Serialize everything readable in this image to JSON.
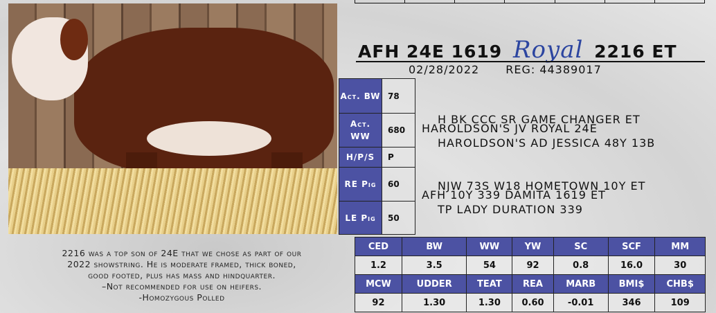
{
  "header": {
    "prefix": "AFH 24E 1619",
    "script_name": "Royal",
    "suffix": "2216 ET",
    "date": "02/28/2022",
    "reg": "REG: 44389017"
  },
  "colors": {
    "accent_blue": "#4c52a3",
    "script_blue": "#2c45a0"
  },
  "stats": [
    {
      "label": "Act. BW",
      "value": "78"
    },
    {
      "label": "Act. WW",
      "value": "680"
    },
    {
      "label": "H/P/S",
      "value": "P"
    },
    {
      "label": "RE Pig",
      "value": "60"
    },
    {
      "label": "LE Pig",
      "value": "50"
    }
  ],
  "pedigree": {
    "sire_sire": "H BK CCC SR GAME CHANGER ET",
    "sire": "HAROLDSON'S JV ROYAL 24E",
    "sire_dam": "HAROLDSON'S AD JESSICA 48Y 13B",
    "dam_sire": "NJW 73S W18 HOMETOWN 10Y ET",
    "dam": "AFH 10Y 339 DAMITA 1619 ET",
    "dam_dam": "TP LADY DURATION 339"
  },
  "description": [
    "2216 was a top son of 24E that we chose as part of our",
    "2022 showstring. He is moderate framed, thick boned,",
    "good footed, plus has mass and hindquarter.",
    "–Not recommended for use on heifers.",
    "-Homozygous Polled"
  ],
  "epd": {
    "row1_headers": [
      "CED",
      "BW",
      "WW",
      "YW",
      "SC",
      "SCF",
      "MM"
    ],
    "row1_values": [
      "1.2",
      "3.5",
      "54",
      "92",
      "0.8",
      "16.0",
      "30"
    ],
    "row2_headers": [
      "MCW",
      "UDDER",
      "TEAT",
      "REA",
      "MARB",
      "BMI$",
      "CHB$"
    ],
    "row2_values": [
      "92",
      "1.30",
      "1.30",
      "0.60",
      "-0.01",
      "346",
      "109"
    ]
  }
}
